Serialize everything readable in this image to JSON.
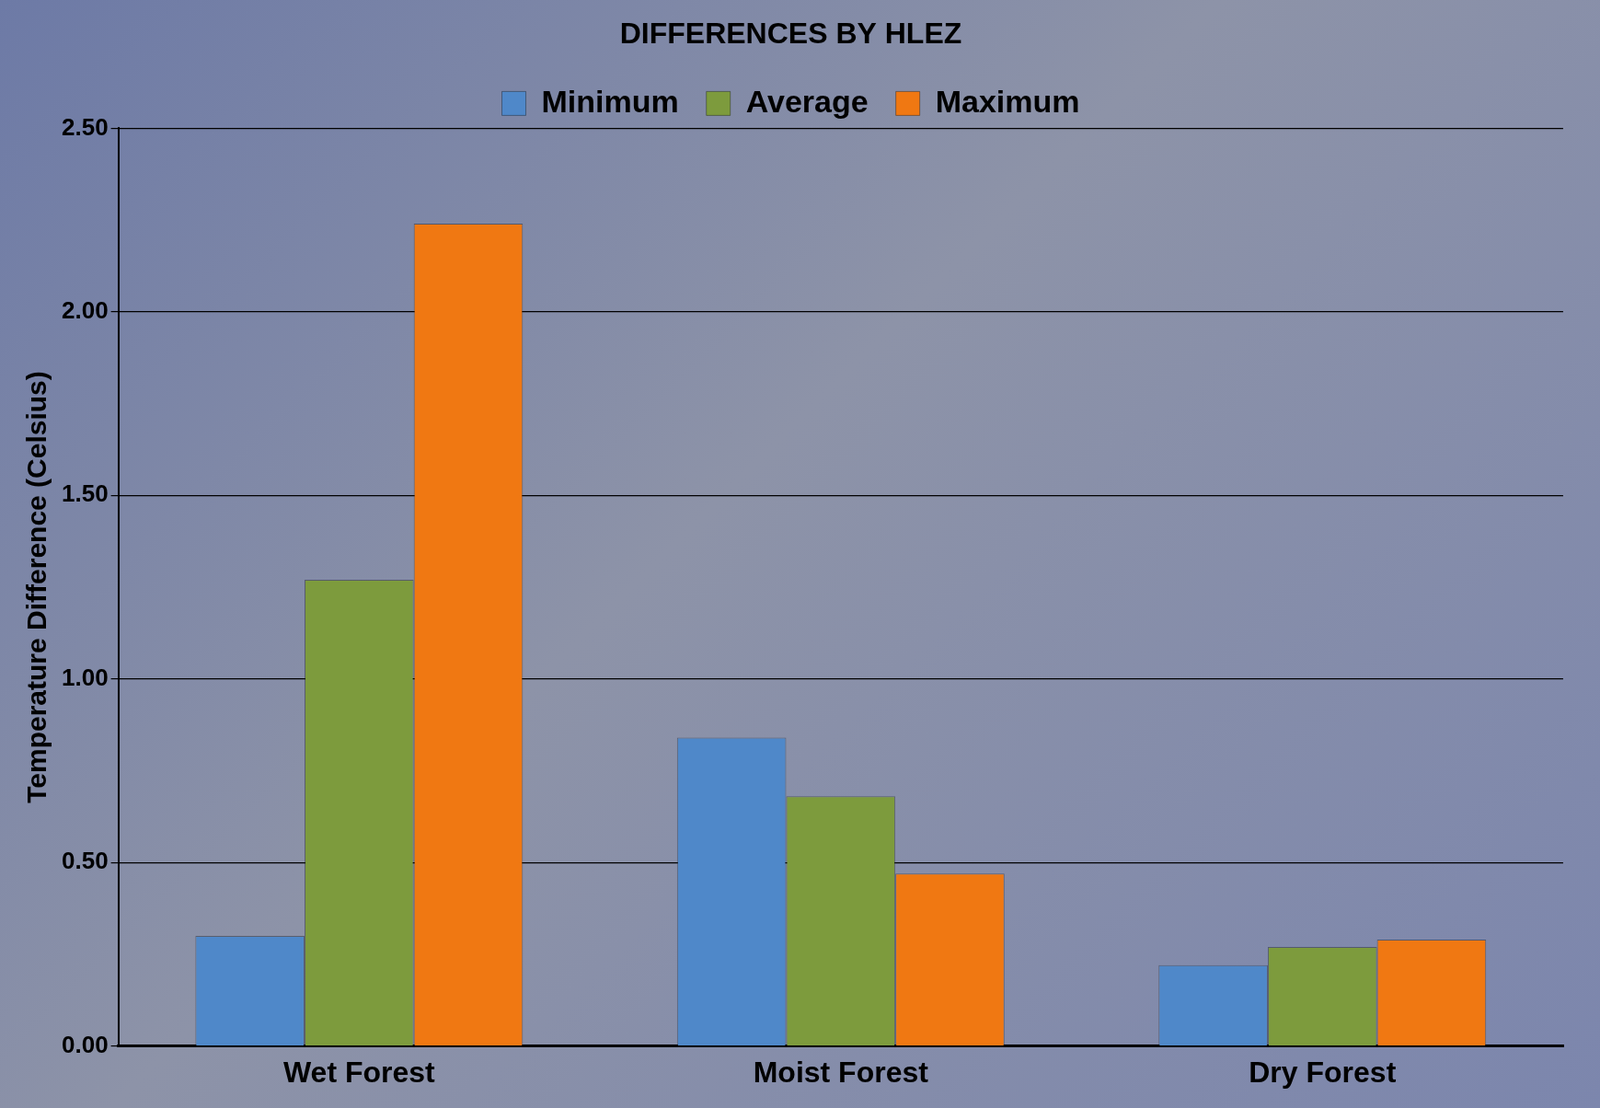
{
  "chart_data": {
    "type": "bar",
    "title": "DIFFERENCES BY HLEZ",
    "y_label": "Temperature Difference (Celsius)",
    "categories": [
      "Wet Forest",
      "Moist Forest",
      "Dry Forest"
    ],
    "series": [
      {
        "name": "Minimum",
        "color": "#4f88c9",
        "values": [
          0.3,
          0.84,
          0.22
        ]
      },
      {
        "name": "Average",
        "color": "#7d9b3d",
        "values": [
          1.27,
          0.68,
          0.27
        ]
      },
      {
        "name": "Maximum",
        "color": "#f07812",
        "values": [
          2.24,
          0.47,
          0.29
        ]
      }
    ],
    "ylim": [
      0,
      2.5
    ],
    "yticks": [
      {
        "value": 0,
        "label": "0.00"
      },
      {
        "value": 0.5,
        "label": "0.50"
      },
      {
        "value": 1,
        "label": "1.00"
      },
      {
        "value": 1.5,
        "label": "1.50"
      },
      {
        "value": 2,
        "label": "2.00"
      },
      {
        "value": 2.5,
        "label": "2.50"
      }
    ],
    "grid": true,
    "legend": "top"
  }
}
